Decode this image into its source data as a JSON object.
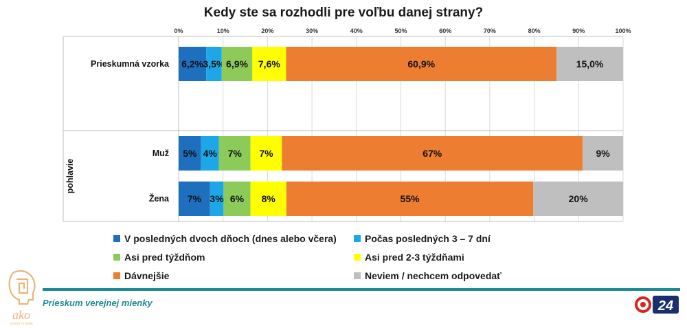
{
  "chart_data": {
    "type": "bar",
    "orientation": "horizontal",
    "stacked": "percent",
    "title": "Kedy ste sa rozhodli pre voľbu danej strany?",
    "x_ticks": [
      "0%",
      "10%",
      "20%",
      "30%",
      "40%",
      "50%",
      "60%",
      "70%",
      "80%",
      "90%",
      "100%"
    ],
    "xlim": [
      0,
      100
    ],
    "grid": true,
    "legend_position": "bottom",
    "group_label": "pohlavie",
    "categories": [
      "Prieskumná vzorka",
      "Muž",
      "Žena"
    ],
    "series": [
      {
        "name": "V posledných dvoch dňoch (dnes alebo včera)",
        "color": "#1f6fbf",
        "values": [
          6.2,
          5,
          7
        ],
        "labels": [
          "6,2%",
          "5%",
          "7%"
        ]
      },
      {
        "name": "Počas posledných 3 – 7 dní",
        "color": "#1ea7e8",
        "values": [
          3.5,
          4,
          3
        ],
        "labels": [
          "3,5%",
          "4%",
          "3%"
        ]
      },
      {
        "name": "Asi pred týždňom",
        "color": "#8ccb5a",
        "values": [
          6.9,
          7,
          6
        ],
        "labels": [
          "6,9%",
          "7%",
          "6%"
        ]
      },
      {
        "name": "Asi pred 2-3 týždňami",
        "color": "#ffff00",
        "values": [
          7.6,
          7,
          8
        ],
        "labels": [
          "7,6%",
          "7%",
          "8%"
        ]
      },
      {
        "name": "Dávnejšie",
        "color": "#ed7d31",
        "values": [
          60.9,
          67,
          55
        ],
        "labels": [
          "60,9%",
          "67%",
          "55%"
        ]
      },
      {
        "name": "Neviem / nechcem odpovedať",
        "color": "#bfbfbf",
        "values": [
          15.0,
          9,
          20
        ],
        "labels": [
          "15,0%",
          "9%",
          "20%"
        ]
      }
    ]
  },
  "footer": {
    "survey_text": "Prieskum verejnej mienky",
    "ako_logo_text": "ako",
    "ako_tagline": "VEDIEŤ O SEBE",
    "tv_logo_text": "24"
  }
}
